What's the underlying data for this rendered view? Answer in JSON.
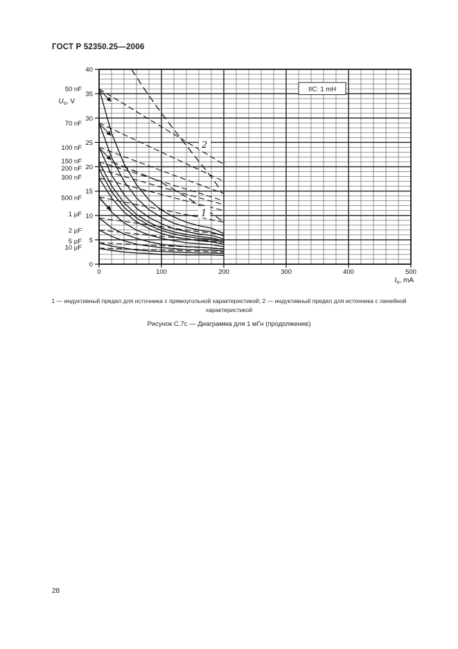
{
  "page": {
    "header": "ГОСТ Р 52350.25—2006",
    "note_line": "1 — индуктивный предел для источника с прямоугольной характеристикой; 2 — индуктивный предел для источника с линейной характеристикой",
    "figure_caption": "Рисунок С.7с — Диаграмма для 1 мГн (продолжение)",
    "page_number": "28"
  },
  "chart_data": {
    "type": "line",
    "annotation_box": "IIC: 1 mH",
    "xlabel": {
      "base": "I",
      "sub": "o",
      "unit": ", mA"
    },
    "ylabel": {
      "base": "U",
      "sub": "o",
      "unit": ", V"
    },
    "xlim": [
      0,
      500
    ],
    "ylim": [
      0,
      40
    ],
    "x_major_ticks": [
      0,
      100,
      200,
      300,
      400,
      500
    ],
    "x_minor_step": 20,
    "y_major_ticks": [
      0,
      5,
      10,
      15,
      20,
      25,
      30,
      35,
      40
    ],
    "y_minor_step": 1,
    "grid": true,
    "legend_position": "left-margin",
    "capacitance_labels": [
      {
        "text": "50 nF",
        "v": 36.0,
        "leader": true
      },
      {
        "text": "70 nF",
        "v": 29.0,
        "leader": true
      },
      {
        "text": "100 nF",
        "v": 24.0,
        "leader": true
      },
      {
        "text": "150 nF",
        "v": 21.2,
        "leader": false
      },
      {
        "text": "200 nF",
        "v": 19.7,
        "leader": false
      },
      {
        "text": "300 nF",
        "v": 17.9,
        "leader": false
      },
      {
        "text": "500 nF",
        "v": 13.7,
        "leader": true
      },
      {
        "text": "1 µF",
        "v": 10.3,
        "leader": false
      },
      {
        "text": "2 µF",
        "v": 7.0,
        "leader": false
      },
      {
        "text": "5 µF",
        "v": 4.8,
        "leader": false
      },
      {
        "text": "10 µF",
        "v": 3.5,
        "leader": false
      }
    ],
    "curve_number_labels": [
      {
        "text": "2",
        "i_ma": 169,
        "v": 24.2
      },
      {
        "text": "1",
        "i_ma": 168,
        "v": 10.2
      }
    ],
    "series": [
      {
        "name": "50 nF",
        "style": "solid",
        "points": [
          [
            0,
            36
          ],
          [
            20,
            26.9
          ],
          [
            40,
            20.6
          ],
          [
            60,
            16.3
          ],
          [
            80,
            13.2
          ],
          [
            100,
            11.1
          ],
          [
            120,
            9.7
          ],
          [
            140,
            8.6
          ],
          [
            160,
            7.9
          ],
          [
            180,
            7.4
          ],
          [
            200,
            6.3
          ]
        ]
      },
      {
        "name": "70 nF",
        "style": "solid",
        "points": [
          [
            0,
            29
          ],
          [
            20,
            21.9
          ],
          [
            40,
            17.0
          ],
          [
            60,
            13.6
          ],
          [
            80,
            11.2
          ],
          [
            100,
            9.6
          ],
          [
            120,
            8.4
          ],
          [
            140,
            7.6
          ],
          [
            160,
            7.0
          ],
          [
            180,
            6.6
          ],
          [
            200,
            5.8
          ]
        ]
      },
      {
        "name": "100 nF",
        "style": "solid",
        "points": [
          [
            0,
            24
          ],
          [
            20,
            18.3
          ],
          [
            40,
            14.3
          ],
          [
            60,
            11.5
          ],
          [
            80,
            9.6
          ],
          [
            100,
            8.3
          ],
          [
            120,
            7.3
          ],
          [
            140,
            6.7
          ],
          [
            160,
            6.2
          ],
          [
            180,
            5.9
          ],
          [
            200,
            5.2
          ]
        ]
      },
      {
        "name": "150 nF",
        "style": "solid",
        "points": [
          [
            0,
            21
          ],
          [
            20,
            16.1
          ],
          [
            40,
            12.6
          ],
          [
            60,
            10.2
          ],
          [
            80,
            8.6
          ],
          [
            100,
            7.4
          ],
          [
            120,
            6.6
          ],
          [
            140,
            6.1
          ],
          [
            160,
            5.7
          ],
          [
            180,
            5.4
          ],
          [
            200,
            4.8
          ]
        ]
      },
      {
        "name": "200 nF",
        "style": "solid",
        "points": [
          [
            0,
            19.5
          ],
          [
            20,
            14.9
          ],
          [
            40,
            11.7
          ],
          [
            60,
            9.5
          ],
          [
            80,
            8.0
          ],
          [
            100,
            6.9
          ],
          [
            120,
            6.2
          ],
          [
            140,
            5.7
          ],
          [
            160,
            5.3
          ],
          [
            180,
            5.1
          ],
          [
            200,
            4.5
          ]
        ]
      },
      {
        "name": "300 nF",
        "style": "solid",
        "points": [
          [
            0,
            17.7
          ],
          [
            20,
            13.6
          ],
          [
            40,
            10.7
          ],
          [
            60,
            8.7
          ],
          [
            80,
            7.3
          ],
          [
            100,
            6.3
          ],
          [
            120,
            5.6
          ],
          [
            140,
            5.2
          ],
          [
            160,
            4.8
          ],
          [
            180,
            4.6
          ],
          [
            200,
            4.1
          ]
        ]
      },
      {
        "name": "500 nF",
        "style": "solid",
        "points": [
          [
            0,
            13.8
          ],
          [
            20,
            10.7
          ],
          [
            40,
            8.5
          ],
          [
            60,
            7.0
          ],
          [
            80,
            6.0
          ],
          [
            100,
            5.3
          ],
          [
            120,
            4.8
          ],
          [
            140,
            4.4
          ],
          [
            160,
            4.2
          ],
          [
            180,
            4.0
          ],
          [
            200,
            3.6
          ]
        ]
      },
      {
        "name": "1 µF",
        "style": "solid",
        "points": [
          [
            0,
            9.5
          ],
          [
            20,
            7.5
          ],
          [
            40,
            6.2
          ],
          [
            60,
            5.3
          ],
          [
            80,
            4.6
          ],
          [
            100,
            4.1
          ],
          [
            120,
            3.8
          ],
          [
            140,
            3.6
          ],
          [
            160,
            3.5
          ],
          [
            180,
            3.3
          ],
          [
            200,
            3.1
          ]
        ]
      },
      {
        "name": "2 µF",
        "style": "solid",
        "points": [
          [
            0,
            7.0
          ],
          [
            20,
            5.7
          ],
          [
            40,
            4.8
          ],
          [
            60,
            4.1
          ],
          [
            80,
            3.7
          ],
          [
            100,
            3.4
          ],
          [
            120,
            3.2
          ],
          [
            140,
            3.0
          ],
          [
            160,
            2.9
          ],
          [
            180,
            2.9
          ],
          [
            200,
            2.7
          ]
        ]
      },
      {
        "name": "5 µF",
        "style": "solid",
        "points": [
          [
            0,
            4.4
          ],
          [
            20,
            3.7
          ],
          [
            40,
            3.3
          ],
          [
            60,
            2.9
          ],
          [
            80,
            2.7
          ],
          [
            100,
            2.6
          ],
          [
            120,
            2.5
          ],
          [
            140,
            2.4
          ],
          [
            160,
            2.3
          ],
          [
            180,
            2.3
          ],
          [
            200,
            2.2
          ]
        ]
      },
      {
        "name": "10 µF",
        "style": "solid",
        "points": [
          [
            0,
            3.3
          ],
          [
            20,
            2.8
          ],
          [
            40,
            2.5
          ],
          [
            60,
            2.3
          ],
          [
            80,
            2.2
          ],
          [
            100,
            2.0
          ],
          [
            120,
            2.0
          ],
          [
            140,
            1.9
          ],
          [
            160,
            1.9
          ],
          [
            180,
            1.9
          ],
          [
            200,
            1.8
          ]
        ]
      },
      {
        "name": "50 nF",
        "style": "dashed",
        "points": [
          [
            0,
            36
          ],
          [
            100,
            28.2
          ],
          [
            200,
            20.5
          ]
        ]
      },
      {
        "name": "70 nF",
        "style": "dashed",
        "points": [
          [
            0,
            29
          ],
          [
            100,
            23.0
          ],
          [
            200,
            17.0
          ]
        ]
      },
      {
        "name": "100 nF",
        "style": "dashed",
        "points": [
          [
            0,
            24
          ],
          [
            100,
            19.2
          ],
          [
            200,
            14.5
          ]
        ]
      },
      {
        "name": "150 nF",
        "style": "dashed",
        "points": [
          [
            0,
            21
          ],
          [
            100,
            17.0
          ],
          [
            200,
            13.0
          ]
        ]
      },
      {
        "name": "200 nF",
        "style": "dashed",
        "points": [
          [
            0,
            19.5
          ],
          [
            100,
            15.8
          ],
          [
            200,
            12.2
          ]
        ]
      },
      {
        "name": "300 nF",
        "style": "dashed",
        "points": [
          [
            0,
            17.7
          ],
          [
            100,
            14.3
          ],
          [
            200,
            11.0
          ]
        ]
      },
      {
        "name": "500 nF",
        "style": "dashed",
        "points": [
          [
            0,
            13.8
          ],
          [
            100,
            11.2
          ],
          [
            200,
            8.6
          ]
        ]
      },
      {
        "name": "1 µF",
        "style": "dashed",
        "points": [
          [
            0,
            9.5
          ],
          [
            100,
            7.7
          ],
          [
            200,
            6.0
          ]
        ]
      },
      {
        "name": "2 µF",
        "style": "dashed",
        "points": [
          [
            0,
            7.0
          ],
          [
            100,
            5.7
          ],
          [
            200,
            4.5
          ]
        ]
      },
      {
        "name": "5 µF",
        "style": "dashed",
        "points": [
          [
            0,
            4.4
          ],
          [
            100,
            3.8
          ],
          [
            200,
            3.2
          ]
        ]
      },
      {
        "name": "10 µF",
        "style": "dashed",
        "points": [
          [
            0,
            3.3
          ],
          [
            100,
            2.9
          ],
          [
            200,
            2.5
          ]
        ]
      },
      {
        "name": "1",
        "style": "dashed",
        "limit": true,
        "points": [
          [
            20,
            21
          ],
          [
            60,
            19
          ],
          [
            100,
            16.8
          ],
          [
            140,
            13.8
          ],
          [
            170,
            11.3
          ],
          [
            200,
            8.7
          ]
        ]
      },
      {
        "name": "2",
        "style": "dashed",
        "limit": true,
        "points": [
          [
            52,
            40
          ],
          [
            75,
            35.5
          ],
          [
            100,
            31
          ],
          [
            125,
            26.8
          ],
          [
            150,
            22.7
          ],
          [
            172,
            19.2
          ],
          [
            188,
            16.5
          ],
          [
            197,
            14.7
          ]
        ]
      }
    ]
  }
}
